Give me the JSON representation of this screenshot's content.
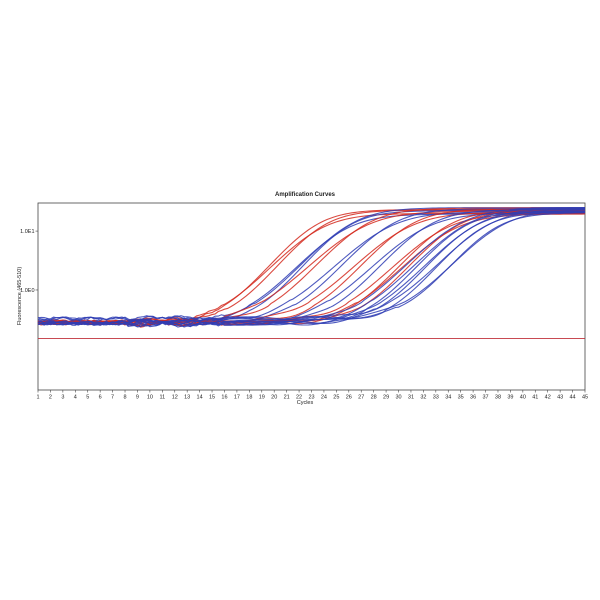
{
  "chart_data": {
    "type": "line",
    "title": "Amplification Curves",
    "xlabel": "Cycles",
    "ylabel": "Fluorescence (465-510)",
    "yscale": "log",
    "x_ticks": [
      1,
      2,
      3,
      4,
      5,
      6,
      7,
      8,
      9,
      10,
      11,
      12,
      13,
      14,
      15,
      16,
      17,
      18,
      19,
      20,
      21,
      22,
      23,
      24,
      25,
      26,
      27,
      28,
      29,
      30,
      31,
      32,
      33,
      34,
      35,
      36,
      37,
      38,
      39,
      40,
      41,
      42,
      43,
      44,
      45
    ],
    "y_ticks": [
      {
        "value": 1,
        "label": "1.0E0"
      },
      {
        "value": 10,
        "label": "1.0E1"
      }
    ],
    "xlim": [
      1,
      45
    ],
    "ylim": [
      0.02,
      30
    ],
    "grid": false,
    "threshold": 0.15,
    "colors": {
      "red": "#d42a1e",
      "blue": "#2f3db4",
      "threshold": "#c0303a",
      "frame": "#444444"
    },
    "series": [
      {
        "color": "red",
        "ct": 19.6
      },
      {
        "color": "red",
        "ct": 19.9
      },
      {
        "color": "red",
        "ct": 20.2
      },
      {
        "color": "blue",
        "ct": 21.9
      },
      {
        "color": "blue",
        "ct": 22.2
      },
      {
        "color": "blue",
        "ct": 22.5
      },
      {
        "color": "red",
        "ct": 23.4
      },
      {
        "color": "red",
        "ct": 23.7
      },
      {
        "color": "blue",
        "ct": 25.4
      },
      {
        "color": "blue",
        "ct": 25.7
      },
      {
        "color": "red",
        "ct": 26.9
      },
      {
        "color": "red",
        "ct": 27.2
      },
      {
        "color": "blue",
        "ct": 28.3
      },
      {
        "color": "blue",
        "ct": 28.7
      },
      {
        "color": "red",
        "ct": 29.9
      },
      {
        "color": "red",
        "ct": 30.2
      },
      {
        "color": "red",
        "ct": 30.6
      },
      {
        "color": "red",
        "ct": 30.9
      },
      {
        "color": "blue",
        "ct": 31.2
      },
      {
        "color": "blue",
        "ct": 31.5
      },
      {
        "color": "blue",
        "ct": 31.8
      },
      {
        "color": "blue",
        "ct": 32.2
      },
      {
        "color": "blue",
        "ct": 32.6
      },
      {
        "color": "blue",
        "ct": 33.0
      },
      {
        "color": "blue",
        "ct": 33.5
      },
      {
        "color": "blue",
        "ct": 34.0
      },
      {
        "color": "blue",
        "ct": 34.6
      }
    ]
  }
}
